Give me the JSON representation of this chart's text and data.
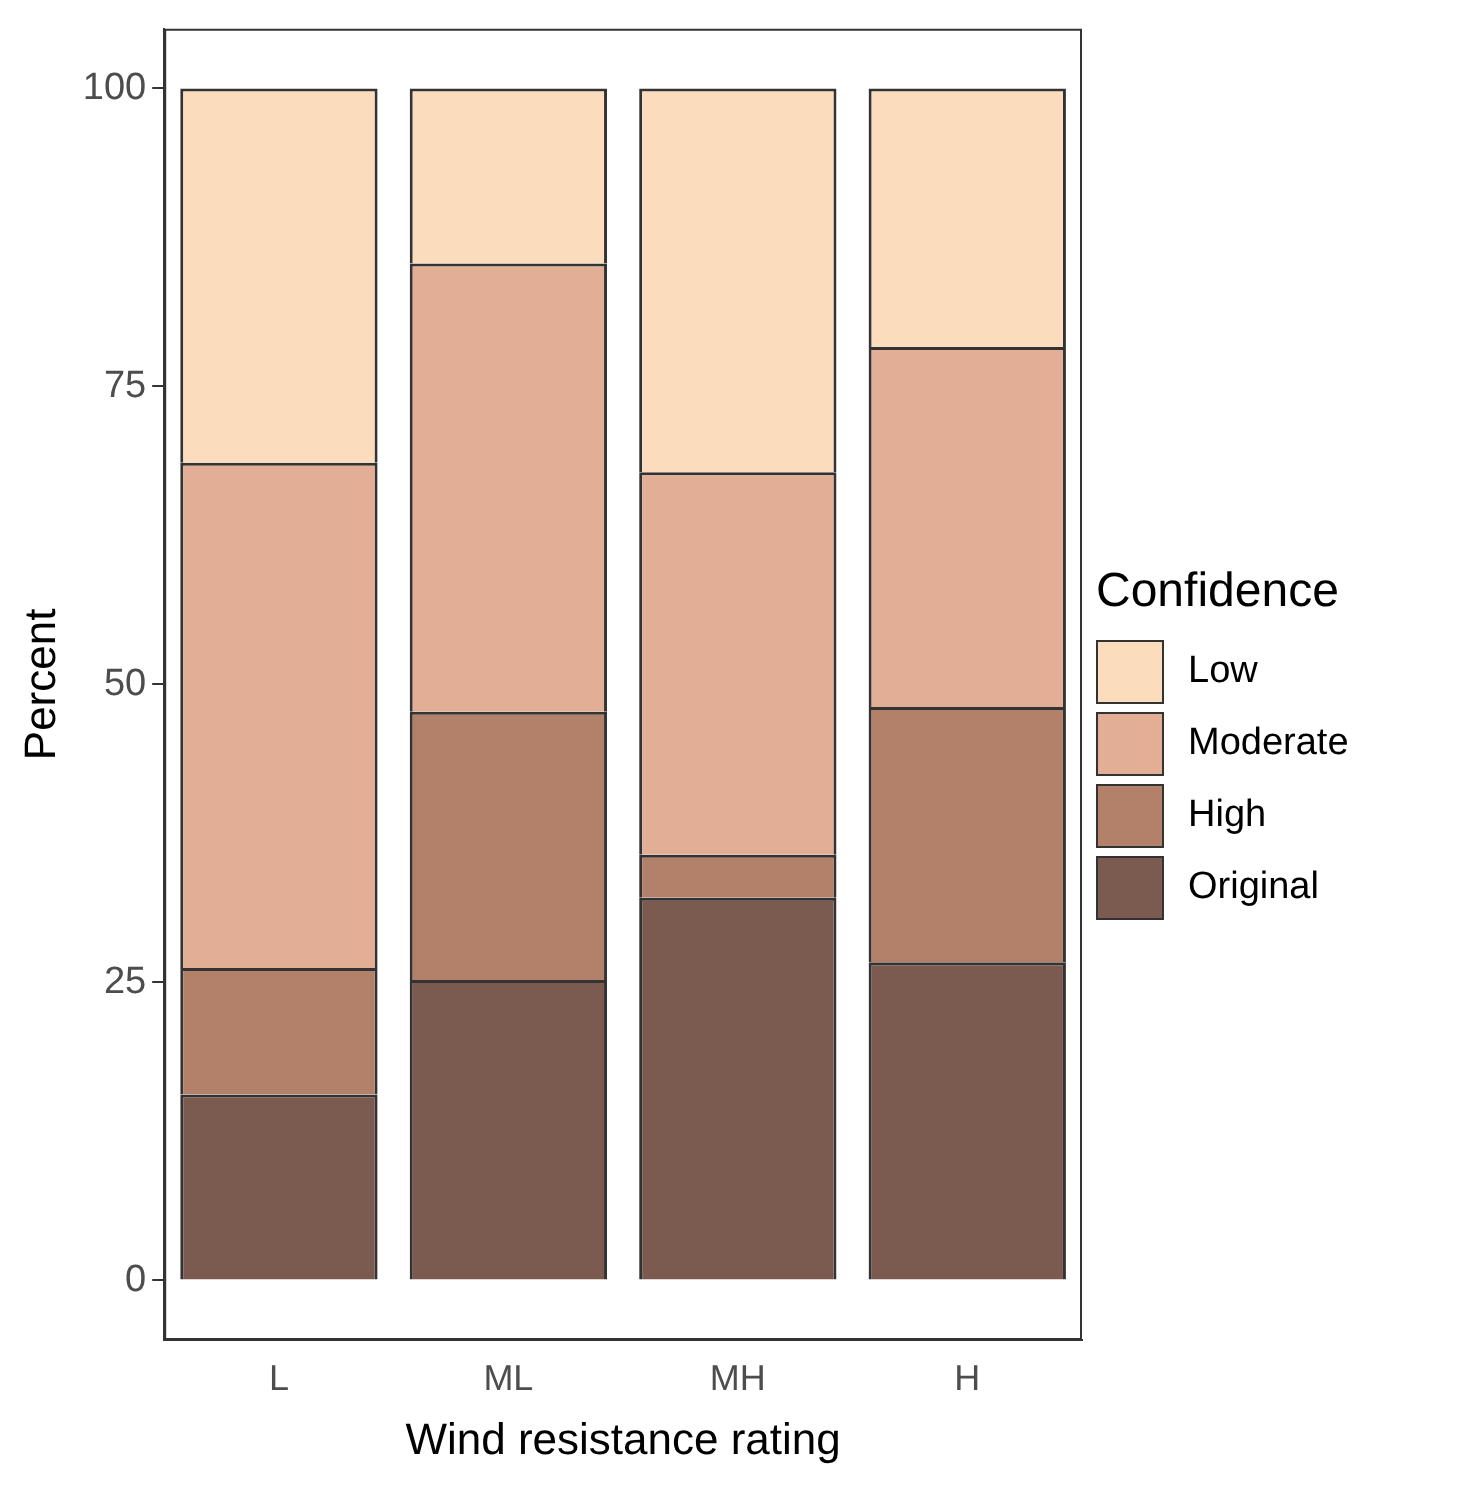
{
  "chart_data": {
    "type": "bar",
    "xlabel": "Wind resistance rating",
    "ylabel": "Percent",
    "legend_title": "Confidence",
    "categories": [
      "L",
      "ML",
      "MH",
      "H"
    ],
    "stacked": true,
    "legend": "right",
    "grid": false,
    "ylim": [
      -5,
      105
    ],
    "yticks": [
      0,
      25,
      50,
      75,
      100
    ],
    "series": [
      {
        "name": "Original",
        "color": "#7b5a4f",
        "values": [
          15.6,
          25.2,
          32.1,
          26.7
        ]
      },
      {
        "name": "High",
        "color": "#b3816a",
        "values": [
          10.6,
          22.5,
          3.6,
          21.4
        ]
      },
      {
        "name": "Moderate",
        "color": "#e3ae96",
        "values": [
          42.4,
          37.6,
          32.1,
          30.2
        ]
      },
      {
        "name": "Low",
        "color": "#fbdcbc",
        "values": [
          31.4,
          14.7,
          32.2,
          21.7
        ]
      }
    ]
  }
}
